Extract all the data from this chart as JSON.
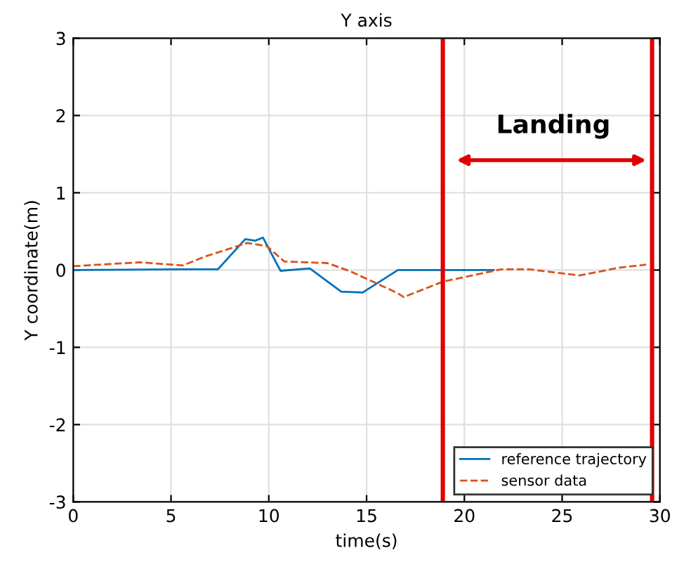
{
  "chart_data": {
    "type": "line",
    "title": "Y axis",
    "xlabel": "time(s)",
    "ylabel": "Y coordinate(m)",
    "xlim": [
      0,
      30
    ],
    "ylim": [
      -3,
      3
    ],
    "xticks": [
      0,
      5,
      10,
      15,
      20,
      25,
      30
    ],
    "yticks": [
      -3,
      -2,
      -1,
      0,
      1,
      2,
      3
    ],
    "grid": true,
    "legend": "bottom right",
    "series": [
      {
        "name": "reference trajectory",
        "color": "#0072bd",
        "line_style": "solid",
        "x": [
          0,
          6.2,
          7.4,
          8.8,
          9.3,
          9.7,
          10.6,
          12.1,
          13.7,
          14.8,
          16.6,
          21.5
        ],
        "values": [
          0,
          0.01,
          0.01,
          0.4,
          0.38,
          0.42,
          -0.01,
          0.02,
          -0.28,
          -0.29,
          0,
          0
        ]
      },
      {
        "name": "sensor data",
        "color": "#d95319",
        "line_style": "dashed",
        "x": [
          0,
          3.4,
          5.6,
          6.8,
          8.9,
          9.9,
          10.8,
          13,
          14.2,
          16.6,
          16.9,
          18.9,
          21.9,
          23.3,
          25.9,
          27.9,
          29.3
        ],
        "values": [
          0.05,
          0.1,
          0.06,
          0.18,
          0.35,
          0.31,
          0.11,
          0.09,
          -0.02,
          -0.3,
          -0.35,
          -0.15,
          0.01,
          0.01,
          -0.07,
          0.03,
          0.07
        ]
      }
    ],
    "ref_lines": [
      {
        "axis": "x",
        "value": 18.9,
        "color": "#e00000"
      },
      {
        "axis": "x",
        "value": 29.6,
        "color": "#e00000"
      }
    ],
    "annotations": [
      "Landing"
    ]
  }
}
